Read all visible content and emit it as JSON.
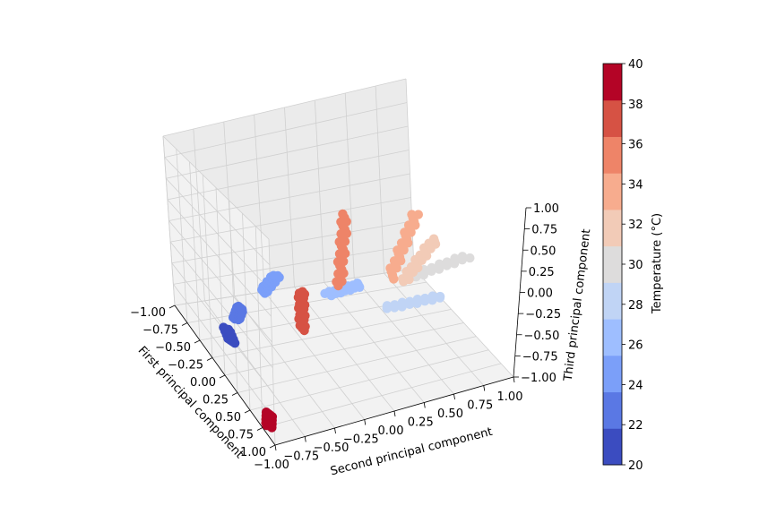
{
  "chart_data": {
    "type": "scatter",
    "projection": "3d",
    "title": "",
    "xlabel": "First principal component",
    "ylabel": "Second principal component",
    "zlabel": "Third principal component",
    "xlim": [
      -1.0,
      1.0
    ],
    "ylim": [
      -1.0,
      1.0
    ],
    "zlim": [
      -1.0,
      1.0
    ],
    "xticks": [
      "−1.00",
      "−0.75",
      "−0.50",
      "−0.25",
      "0.00",
      "0.25",
      "0.50",
      "0.75",
      "1.00"
    ],
    "yticks": [
      "−1.00",
      "−0.75",
      "−0.50",
      "−0.25",
      "0.00",
      "0.25",
      "0.50",
      "0.75",
      "1.00"
    ],
    "zticks": [
      "−1.00",
      "−0.75",
      "−0.50",
      "−0.25",
      "0.00",
      "0.25",
      "0.50",
      "0.75",
      "1.00"
    ],
    "grid": true,
    "colormap": "coolwarm",
    "colorbar": {
      "label": "Temperature (°C)",
      "vmin": 20,
      "vmax": 40,
      "ticks": [
        "20",
        "22",
        "24",
        "26",
        "28",
        "30",
        "32",
        "34",
        "36",
        "38",
        "40"
      ],
      "bins": [
        "#3b4cc0",
        "#5a78e4",
        "#7b9ff9",
        "#9ebeff",
        "#c0d4f5",
        "#dddcdc",
        "#f2cbb7",
        "#f7ac8e",
        "#ee8468",
        "#d65244",
        "#b40426"
      ]
    },
    "clusters": [
      {
        "temperature": 20,
        "color": "#3b4cc0",
        "start": [
          -0.05,
          -0.95,
          -0.62
        ],
        "end": [
          0.05,
          -0.95,
          -0.55
        ]
      },
      {
        "temperature": 22,
        "color": "#5a78e4",
        "start": [
          0.35,
          -0.75,
          -0.72
        ],
        "end": [
          0.5,
          -0.65,
          -0.72
        ]
      },
      {
        "temperature": 24,
        "color": "#7b9ff9",
        "start": [
          0.65,
          -0.4,
          -0.72
        ],
        "end": [
          0.85,
          -0.2,
          -0.72
        ]
      },
      {
        "temperature": 26,
        "color": "#9ebeff",
        "start": [
          0.45,
          0.05,
          -0.72
        ],
        "end": [
          0.5,
          0.35,
          -0.72
        ]
      },
      {
        "temperature": 28,
        "color": "#c0d4f5",
        "start": [
          0.0,
          0.35,
          -0.65
        ],
        "end": [
          0.0,
          0.8,
          -0.65
        ]
      },
      {
        "temperature": 30,
        "color": "#dddcdc",
        "start": [
          -0.15,
          0.5,
          -0.25
        ],
        "end": [
          -0.15,
          0.95,
          -0.15
        ]
      },
      {
        "temperature": 32,
        "color": "#f2cbb7",
        "start": [
          -0.45,
          0.3,
          -0.05
        ],
        "end": [
          -0.45,
          0.55,
          0.35
        ]
      },
      {
        "temperature": 34,
        "color": "#f7ac8e",
        "start": [
          -0.55,
          0.15,
          0.1
        ],
        "end": [
          -0.55,
          0.35,
          0.75
        ]
      },
      {
        "temperature": 36,
        "color": "#ee8468",
        "start": [
          -0.4,
          -0.2,
          0.0
        ],
        "end": [
          -0.4,
          -0.15,
          0.75
        ]
      },
      {
        "temperature": 38,
        "color": "#d65244",
        "start": [
          -0.5,
          -0.55,
          -0.3
        ],
        "end": [
          -0.5,
          -0.55,
          0.1
        ]
      },
      {
        "temperature": 40,
        "color": "#b40426",
        "start": [
          -0.88,
          -1.0,
          -0.9
        ],
        "end": [
          -0.85,
          -0.98,
          -0.8
        ]
      }
    ]
  }
}
